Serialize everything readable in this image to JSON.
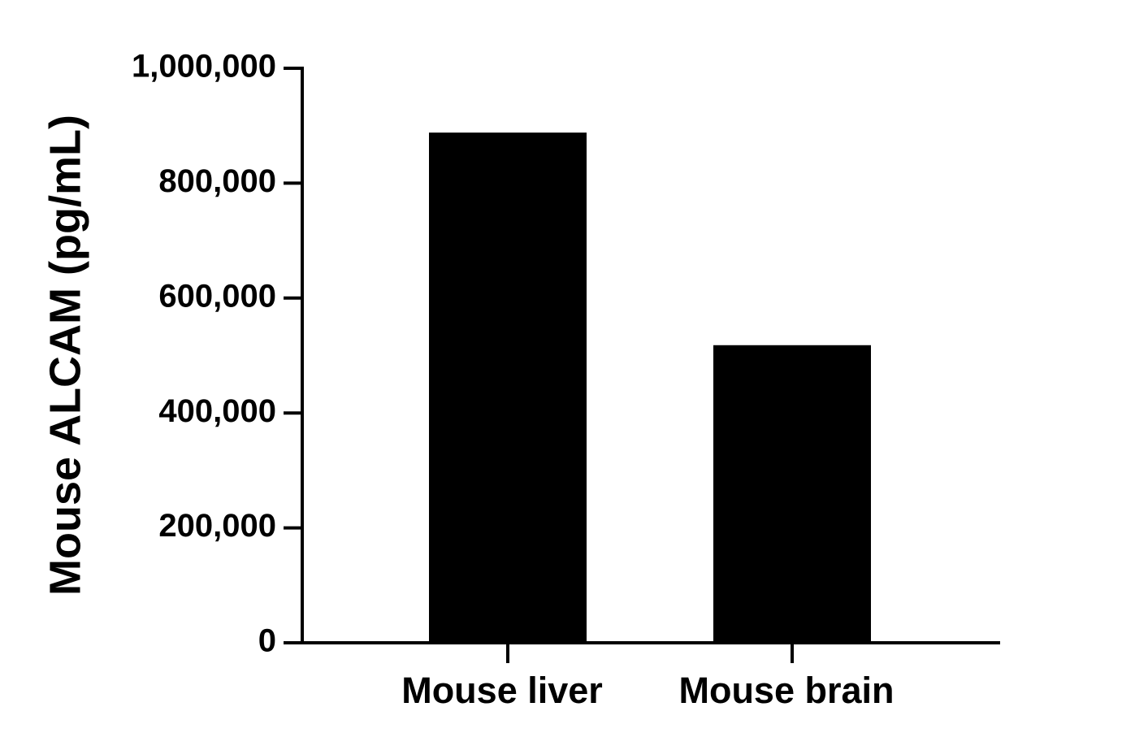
{
  "chart_data": {
    "type": "bar",
    "y_label": "Mouse ALCAM (pg/mL)",
    "categories": [
      "Mouse liver",
      "Mouse brain"
    ],
    "values": [
      888000,
      518000
    ],
    "color": "#000000",
    "ylim": [
      0,
      1000000
    ],
    "yticks": [
      0,
      {
        "value": 200000,
        "label": "200,000"
      },
      {
        "value": 400000,
        "label": "400,000"
      },
      {
        "value": 600000,
        "label": "600,000"
      },
      {
        "value": 800000,
        "label": "800,000"
      },
      {
        "value": 1000000,
        "label": "1,000,000"
      }
    ],
    "grid": false
  }
}
